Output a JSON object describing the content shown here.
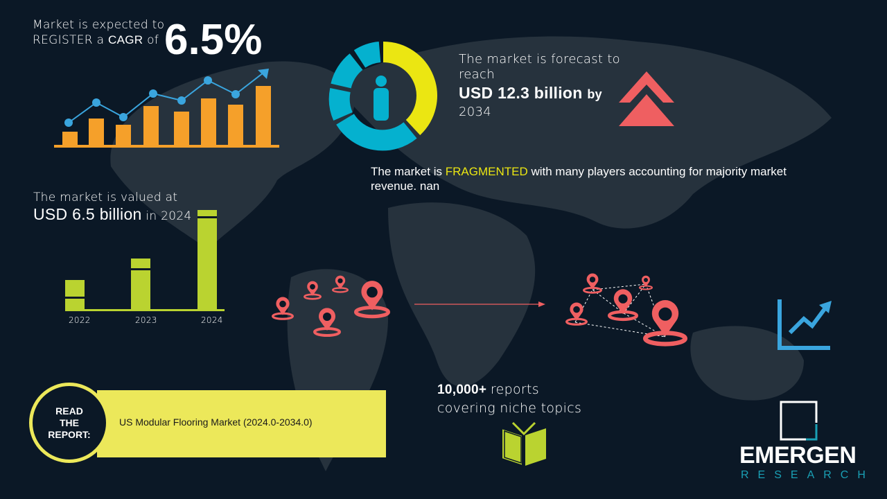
{
  "cagr": {
    "line1": "Market is expected to",
    "line2_prefix": "REGISTER a",
    "line2_bold": "CAGR",
    "line2_suffix": "of",
    "value": "6.5%"
  },
  "forecast": {
    "line1": "The market is forecast to",
    "line2": "reach",
    "value": "USD 12.3 billion",
    "by": "by",
    "year": "2034"
  },
  "fragmented": {
    "prefix": "The market is",
    "highlight": "FRAGMENTED",
    "suffix": "with many players accounting for majority market",
    "line2": "revenue. nan"
  },
  "valued": {
    "line1": "The market is valued at",
    "value": "USD 6.5 billion",
    "suffix": "in 2024",
    "years": [
      "2022",
      "2023",
      "2024"
    ]
  },
  "report": {
    "circle_text": [
      "READ",
      "THE",
      "REPORT:"
    ],
    "title": "US Modular Flooring Market (2024.0-2034.0)"
  },
  "reports": {
    "count": "10,000+",
    "line1_suffix": "reports",
    "line2": "covering niche topics"
  },
  "logo": {
    "name": "EMERGEN",
    "sub": "RESEARCH"
  },
  "colors": {
    "background": "#0b1826",
    "orange": "#f5a02a",
    "blue": "#3aa5de",
    "yellow": "#ebe612",
    "cyan": "#05b1cf",
    "red": "#ef5f61",
    "green": "#bad330",
    "banner": "#ece85a",
    "teal": "#1aa0b5"
  }
}
